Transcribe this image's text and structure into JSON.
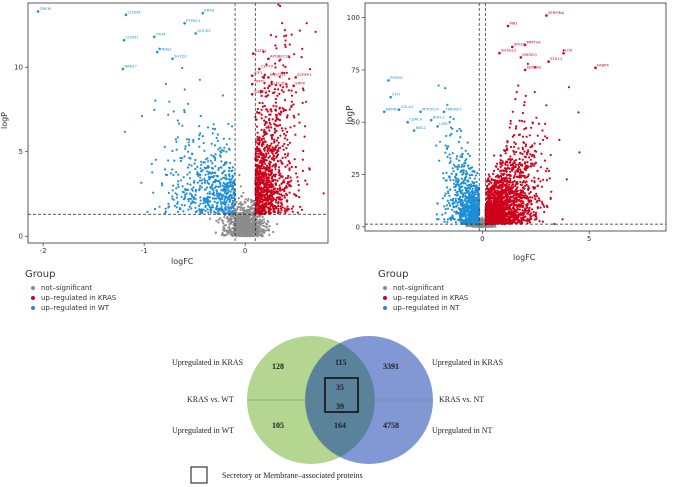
{
  "chart_data": [
    {
      "type": "scatter",
      "title": "",
      "xlabel": "logFC",
      "ylabel": "logP",
      "xlim": [
        -2.15,
        0.82
      ],
      "ylim": [
        -0.4,
        13.8
      ],
      "xticks": [
        -2,
        -1,
        0
      ],
      "yticks": [
        0,
        5,
        10
      ],
      "thresholds": {
        "x": [
          -0.1,
          0.1
        ],
        "y": 1.3
      },
      "legend": {
        "title": "Group",
        "entries": [
          {
            "label": "not–significant",
            "color": "#8c8c8c"
          },
          {
            "label": "up–regulated in KRAS",
            "color": "#d0021b"
          },
          {
            "label": "up–regulated in WT",
            "color": "#1e8fd6"
          }
        ]
      },
      "labeled_points": [
        {
          "label": "TMEM",
          "x": -2.05,
          "y": 13.3,
          "group": "wt"
        },
        {
          "label": "CLDN4",
          "x": -1.18,
          "y": 13.1,
          "group": "wt"
        },
        {
          "label": "KRAS",
          "x": -0.42,
          "y": 13.2,
          "group": "wt"
        },
        {
          "label": "PTPN11",
          "x": -0.6,
          "y": 12.6,
          "group": "wt"
        },
        {
          "label": "DOCK5",
          "x": -0.49,
          "y": 12.0,
          "group": "wt"
        },
        {
          "label": "CLDN1",
          "x": -1.2,
          "y": 11.6,
          "group": "wt"
        },
        {
          "label": "ITIH4",
          "x": -0.9,
          "y": 11.8,
          "group": "wt"
        },
        {
          "label": "NINAJ2",
          "x": -0.87,
          "y": 10.9,
          "group": "wt"
        },
        {
          "label": "SH2D2",
          "x": -0.72,
          "y": 10.5,
          "group": "wt"
        },
        {
          "label": "RAB27",
          "x": -1.21,
          "y": 9.9,
          "group": "wt"
        },
        {
          "label": "SATB1",
          "x": 0.08,
          "y": 10.8,
          "group": "kras"
        },
        {
          "label": "APOBEC3B",
          "x": 0.23,
          "y": 10.5,
          "group": "kras"
        },
        {
          "label": "CEP70",
          "x": 0.14,
          "y": 9.9,
          "group": "kras"
        },
        {
          "label": "IGF2",
          "x": 0.07,
          "y": 9.5,
          "group": "kras"
        },
        {
          "label": "SQSTM1",
          "x": 0.23,
          "y": 9.4,
          "group": "kras"
        },
        {
          "label": "SCPEP1",
          "x": 0.5,
          "y": 9.4,
          "group": "kras"
        },
        {
          "label": "TIMP1",
          "x": 0.07,
          "y": 9.0,
          "group": "kras"
        },
        {
          "label": "CLEC2D",
          "x": 0.24,
          "y": 8.9,
          "group": "kras"
        },
        {
          "label": "SRPX",
          "x": 0.48,
          "y": 8.9,
          "group": "kras"
        },
        {
          "label": "CDCA7",
          "x": 0.07,
          "y": 8.4,
          "group": "kras"
        }
      ]
    },
    {
      "type": "scatter",
      "title": "",
      "xlabel": "logFC",
      "ylabel": "logP",
      "xlim": [
        -5.5,
        8.6
      ],
      "ylim": [
        -2,
        107
      ],
      "xticks": [
        0,
        5
      ],
      "yticks": [
        0,
        25,
        50,
        75,
        100
      ],
      "thresholds": {
        "x": [
          -0.15,
          0.15
        ],
        "y": 1.3
      },
      "legend": {
        "title": "Group",
        "entries": [
          {
            "label": "not–significant",
            "color": "#8c8c8c"
          },
          {
            "label": "up–regulated in KRAS",
            "color": "#d0021b"
          },
          {
            "label": "up–regulated in NT",
            "color": "#1e8fd6"
          }
        ]
      },
      "labeled_points": [
        {
          "label": "SERPINA",
          "x": 3.0,
          "y": 101,
          "group": "kras"
        },
        {
          "label": "MB1",
          "x": 1.2,
          "y": 96,
          "group": "kras"
        },
        {
          "label": "SRCD",
          "x": 1.4,
          "y": 86,
          "group": "kras"
        },
        {
          "label": "MMTSA",
          "x": 2.0,
          "y": 87,
          "group": "kras"
        },
        {
          "label": "SH3GL3",
          "x": 0.8,
          "y": 83,
          "group": "kras"
        },
        {
          "label": "MRGRO",
          "x": 1.8,
          "y": 81,
          "group": "kras"
        },
        {
          "label": "LOX",
          "x": 3.8,
          "y": 83,
          "group": "kras"
        },
        {
          "label": "STX11",
          "x": 3.1,
          "y": 79,
          "group": "kras"
        },
        {
          "label": "SERTAD",
          "x": 2.0,
          "y": 75,
          "group": "kras"
        },
        {
          "label": "FABP4",
          "x": 5.3,
          "y": 76,
          "group": "kras"
        },
        {
          "label": "PYGM1",
          "x": -4.4,
          "y": 70,
          "group": "nt"
        },
        {
          "label": "CFH",
          "x": -4.3,
          "y": 62,
          "group": "nt"
        },
        {
          "label": "COLA1",
          "x": -3.9,
          "y": 56,
          "group": "nt"
        },
        {
          "label": "PAMR1",
          "x": -4.6,
          "y": 55,
          "group": "nt"
        },
        {
          "label": "PPP1R14",
          "x": -2.9,
          "y": 55,
          "group": "nt"
        },
        {
          "label": "TMEM27",
          "x": -1.8,
          "y": 55,
          "group": "nt"
        },
        {
          "label": "CDAC4",
          "x": -3.5,
          "y": 50,
          "group": "nt"
        },
        {
          "label": "NSFL1",
          "x": -2.4,
          "y": 51,
          "group": "nt"
        },
        {
          "label": "NNS1",
          "x": -3.2,
          "y": 46,
          "group": "nt"
        },
        {
          "label": "LARC",
          "x": -2.1,
          "y": 48,
          "group": "nt"
        }
      ]
    },
    {
      "type": "venn",
      "sets": [
        {
          "name": "KRAS vs. WT",
          "color": "#a8cf7c"
        },
        {
          "name": "KRAS vs. NT",
          "color": "#6b86cc"
        }
      ],
      "rows": [
        "Upregulated in KRAS",
        "Upregulated in WT",
        "Upregulated in NT"
      ],
      "values": {
        "wt_only_up_kras": 128,
        "overlap_up_kras": 115,
        "nt_only_up_kras": 3391,
        "secretory_up_kras": 35,
        "secretory_up_other": 39,
        "wt_only_up_wt": 105,
        "overlap_up_other": 164,
        "nt_only_up_nt": 4758
      },
      "box_legend": "Secretory or Membrane–associated proteins"
    }
  ]
}
